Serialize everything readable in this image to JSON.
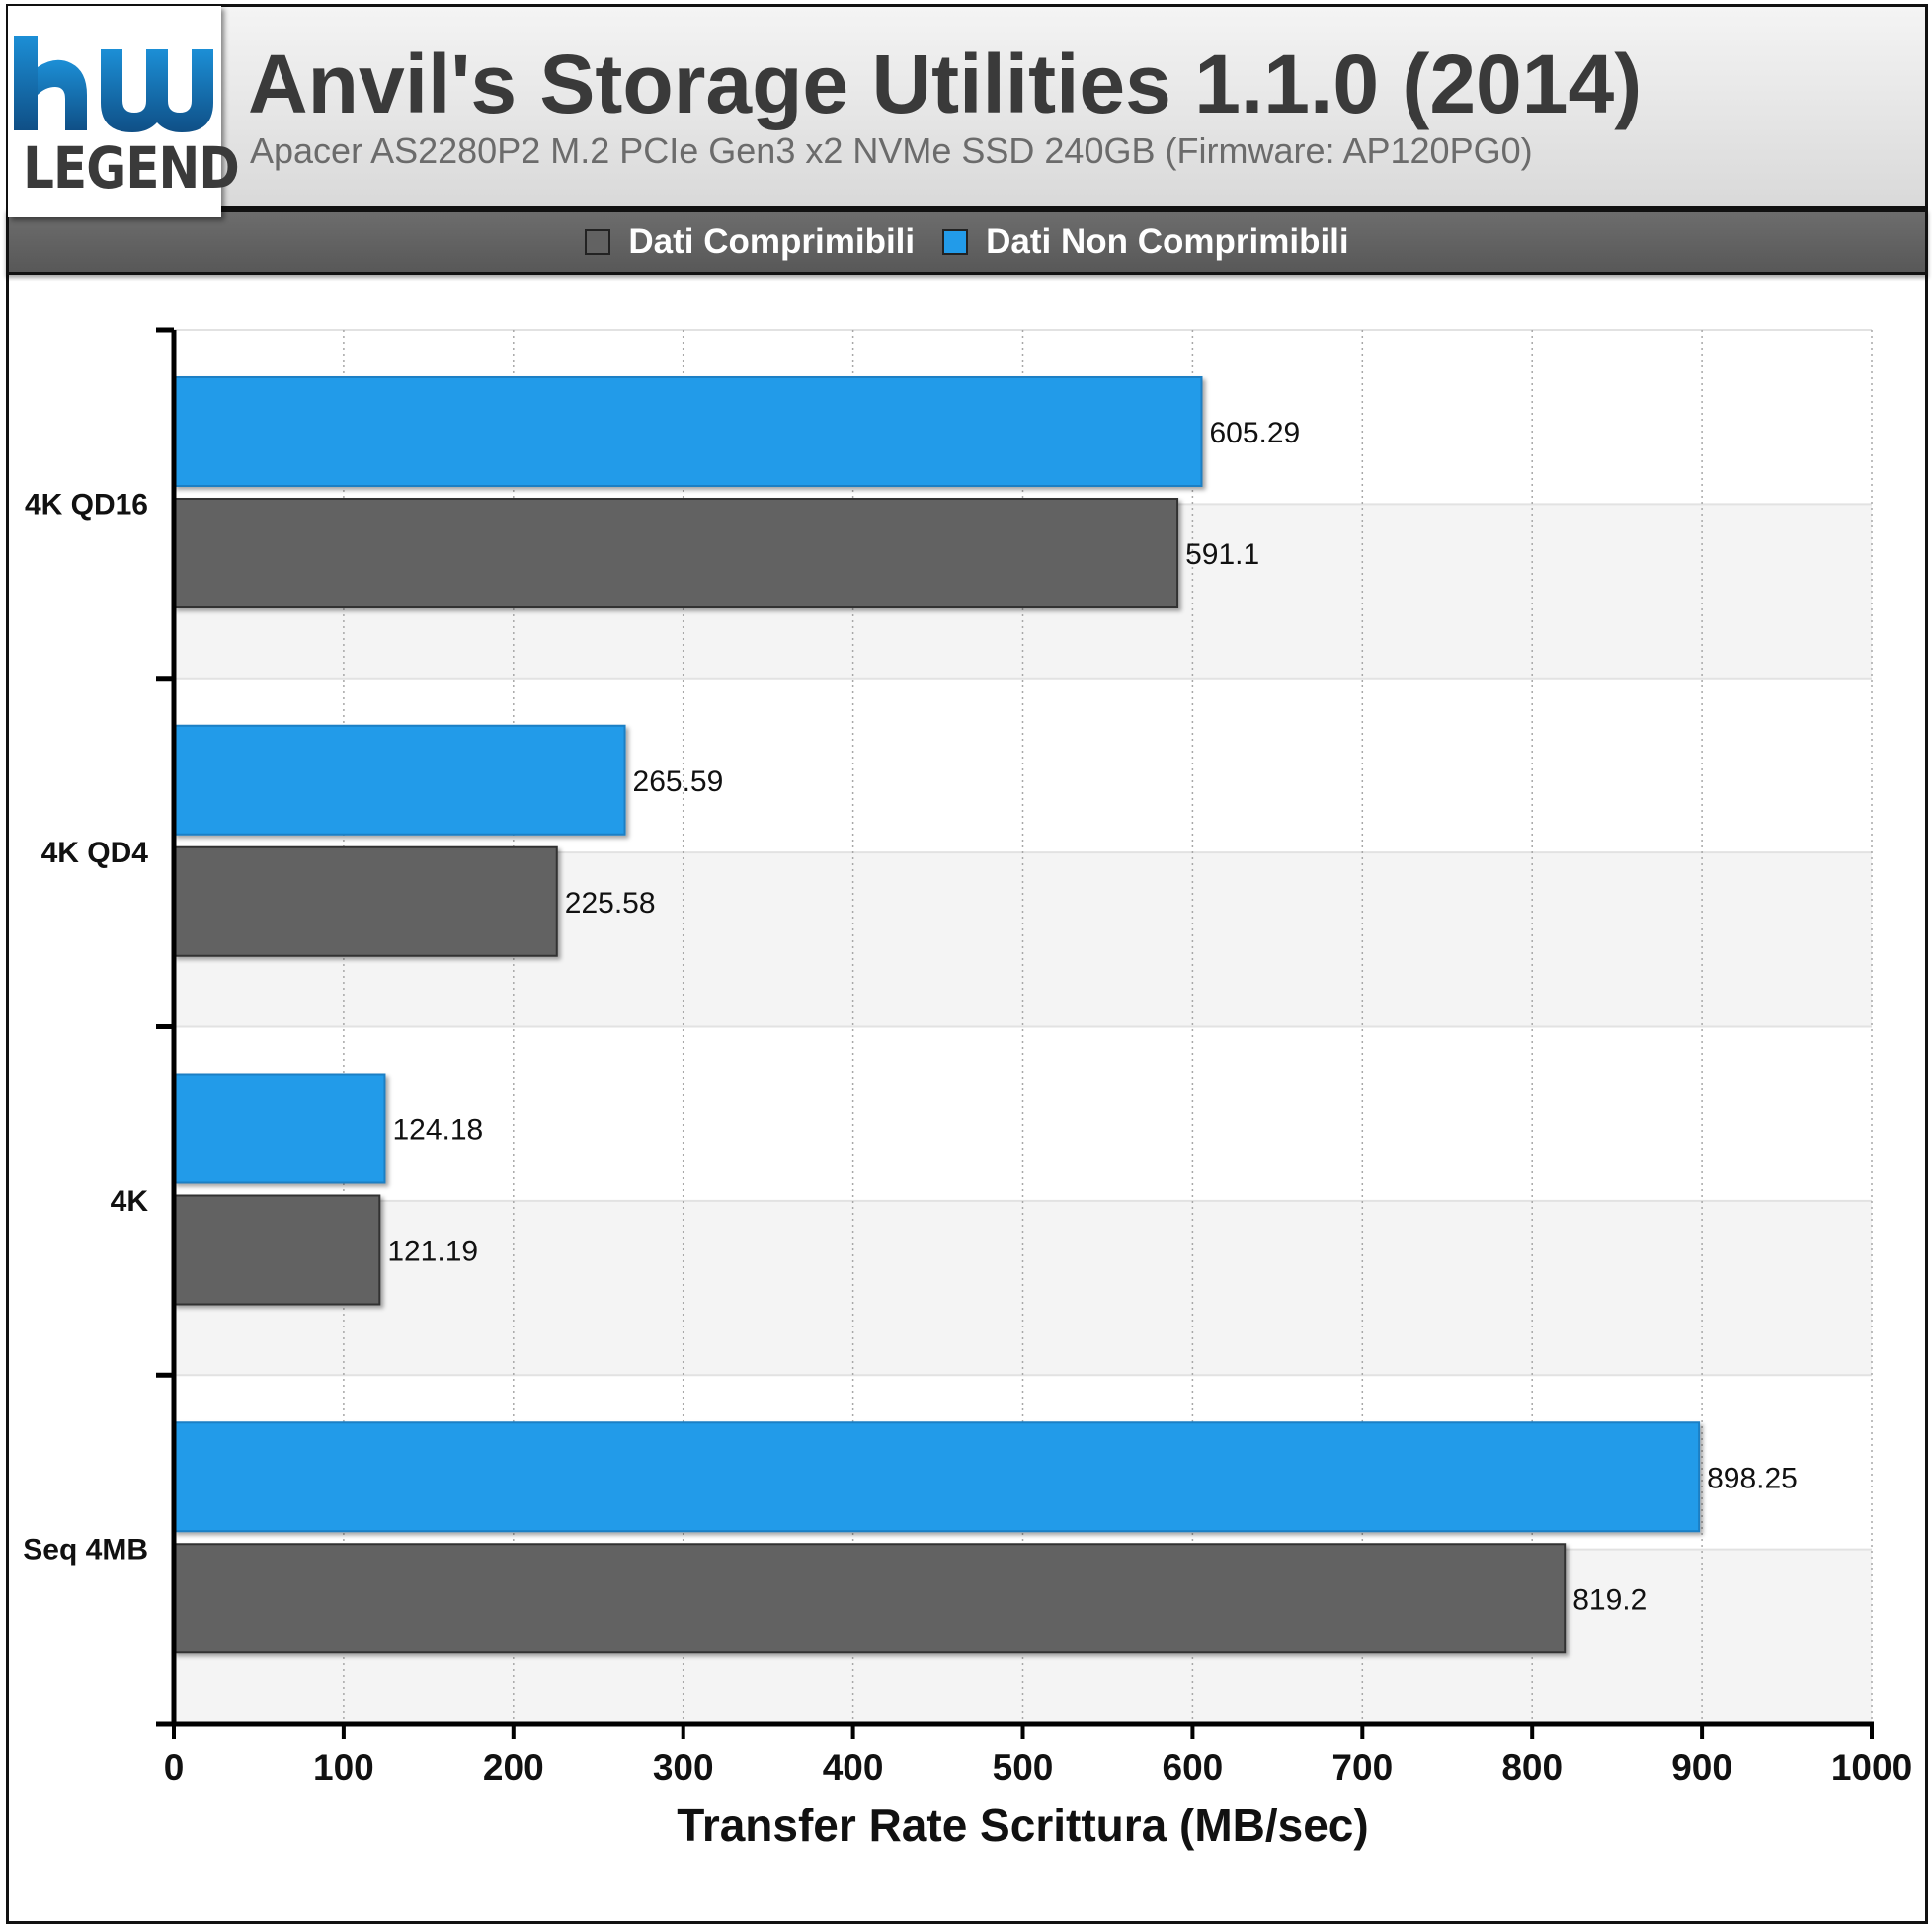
{
  "logo": {
    "text": "LEGEND"
  },
  "header": {
    "title": "Anvil's Storage Utilities 1.1.0 (2014)",
    "subtitle": "Apacer AS2280P2 M.2 PCIe Gen3 x2 NVMe SSD 240GB (Firmware: AP120PG0)"
  },
  "legend": {
    "items": [
      {
        "label": "Dati Comprimibili",
        "color": "#626262"
      },
      {
        "label": "Dati Non Comprimibili",
        "color": "#229be9"
      }
    ]
  },
  "chart_data": {
    "type": "bar",
    "orientation": "horizontal",
    "title": "Anvil's Storage Utilities 1.1.0 (2014)",
    "subtitle": "Apacer AS2280P2 M.2 PCIe Gen3 x2 NVMe SSD 240GB (Firmware: AP120PG0)",
    "categories": [
      "4K QD16",
      "4K QD4",
      "4K",
      "Seq 4MB"
    ],
    "series": [
      {
        "name": "Dati Non Comprimibili",
        "color": "#229be9",
        "values": [
          605.29,
          265.59,
          124.18,
          898.25
        ],
        "labels": [
          "605.29",
          "265.59",
          "124.18",
          "898.25"
        ]
      },
      {
        "name": "Dati Comprimibili",
        "color": "#626262",
        "values": [
          591.1,
          225.58,
          121.19,
          819.2
        ],
        "labels": [
          "591.1",
          "225.58",
          "121.19",
          "819.2"
        ]
      }
    ],
    "xlabel": "Transfer Rate Scrittura (MB/sec)",
    "ylabel": "",
    "xlim": [
      0,
      1000
    ],
    "xticks": [
      0,
      100,
      200,
      300,
      400,
      500,
      600,
      700,
      800,
      900,
      1000
    ],
    "grid": "vertical dotted",
    "legend_position": "top"
  }
}
